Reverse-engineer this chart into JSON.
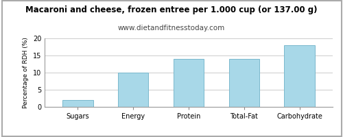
{
  "title": "Macaroni and cheese, frozen entree per 1.000 cup (or 137.00 g)",
  "subtitle": "www.dietandfitnesstoday.com",
  "categories": [
    "Sugars",
    "Energy",
    "Protein",
    "Total-Fat",
    "Carbohydrate"
  ],
  "values": [
    2,
    10,
    14,
    14,
    18
  ],
  "bar_color": "#a8d8e8",
  "bar_edge_color": "#7ab8cc",
  "ylabel": "Percentage of RDH (%)",
  "ylim": [
    0,
    20
  ],
  "yticks": [
    0,
    5,
    10,
    15,
    20
  ],
  "background_color": "#ffffff",
  "grid_color": "#cccccc",
  "border_color": "#aaaaaa",
  "title_fontsize": 8.5,
  "subtitle_fontsize": 7.5,
  "ylabel_fontsize": 6.5,
  "tick_fontsize": 7.0
}
